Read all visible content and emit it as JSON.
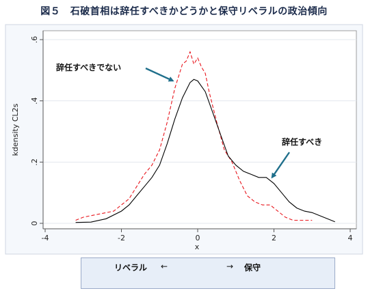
{
  "figure_title": "図５　石破首相は辞任すべきかどうかと保守リベラルの政治傾向",
  "scale": {
    "left_label": "リベラル",
    "left_arrow": "←",
    "right_arrow": "→",
    "right_label": "保守"
  },
  "chart_data": {
    "type": "line",
    "title": "",
    "xlabel": "x",
    "ylabel": "kdensity CL2s",
    "xlim": [
      -4,
      4
    ],
    "ylim": [
      0,
      0.6
    ],
    "x_ticks": [
      "-4",
      "-2",
      "0",
      "2",
      "4"
    ],
    "y_ticks": [
      "0",
      ".2",
      ".4",
      ".6"
    ],
    "grid": "horizontal",
    "series": [
      {
        "name": "辞任すべきでない",
        "color": "#e8141b",
        "style": "dashed",
        "points": [
          [
            -3.2,
            0.01
          ],
          [
            -3.0,
            0.02
          ],
          [
            -2.6,
            0.03
          ],
          [
            -2.2,
            0.04
          ],
          [
            -2.0,
            0.06
          ],
          [
            -1.8,
            0.08
          ],
          [
            -1.6,
            0.12
          ],
          [
            -1.4,
            0.16
          ],
          [
            -1.2,
            0.19
          ],
          [
            -1.0,
            0.24
          ],
          [
            -0.8,
            0.33
          ],
          [
            -0.6,
            0.44
          ],
          [
            -0.5,
            0.48
          ],
          [
            -0.4,
            0.52
          ],
          [
            -0.3,
            0.53
          ],
          [
            -0.2,
            0.56
          ],
          [
            -0.1,
            0.52
          ],
          [
            0.0,
            0.54
          ],
          [
            0.1,
            0.51
          ],
          [
            0.2,
            0.49
          ],
          [
            0.3,
            0.43
          ],
          [
            0.5,
            0.33
          ],
          [
            0.7,
            0.24
          ],
          [
            0.9,
            0.2
          ],
          [
            1.1,
            0.14
          ],
          [
            1.3,
            0.09
          ],
          [
            1.5,
            0.07
          ],
          [
            1.7,
            0.06
          ],
          [
            1.9,
            0.06
          ],
          [
            2.1,
            0.04
          ],
          [
            2.3,
            0.02
          ],
          [
            2.5,
            0.01
          ],
          [
            3.0,
            0.01
          ]
        ]
      },
      {
        "name": "辞任すべき",
        "color": "#000000",
        "style": "solid",
        "points": [
          [
            -3.2,
            0.003
          ],
          [
            -2.8,
            0.004
          ],
          [
            -2.4,
            0.015
          ],
          [
            -2.0,
            0.04
          ],
          [
            -1.8,
            0.06
          ],
          [
            -1.6,
            0.09
          ],
          [
            -1.4,
            0.12
          ],
          [
            -1.2,
            0.15
          ],
          [
            -1.0,
            0.19
          ],
          [
            -0.8,
            0.26
          ],
          [
            -0.6,
            0.34
          ],
          [
            -0.4,
            0.41
          ],
          [
            -0.2,
            0.46
          ],
          [
            -0.1,
            0.47
          ],
          [
            0.0,
            0.465
          ],
          [
            0.2,
            0.43
          ],
          [
            0.4,
            0.36
          ],
          [
            0.6,
            0.29
          ],
          [
            0.8,
            0.22
          ],
          [
            1.0,
            0.19
          ],
          [
            1.2,
            0.17
          ],
          [
            1.4,
            0.16
          ],
          [
            1.6,
            0.15
          ],
          [
            1.8,
            0.15
          ],
          [
            2.0,
            0.13
          ],
          [
            2.2,
            0.1
          ],
          [
            2.4,
            0.07
          ],
          [
            2.6,
            0.05
          ],
          [
            2.8,
            0.04
          ],
          [
            3.0,
            0.035
          ],
          [
            3.2,
            0.025
          ],
          [
            3.4,
            0.015
          ],
          [
            3.6,
            0.005
          ]
        ]
      }
    ],
    "annotations": [
      {
        "text": "辞任すべきでない",
        "arrow_to": [
          -0.65,
          0.47
        ]
      },
      {
        "text": "辞任すべき",
        "arrow_to": [
          1.95,
          0.15
        ]
      }
    ]
  }
}
